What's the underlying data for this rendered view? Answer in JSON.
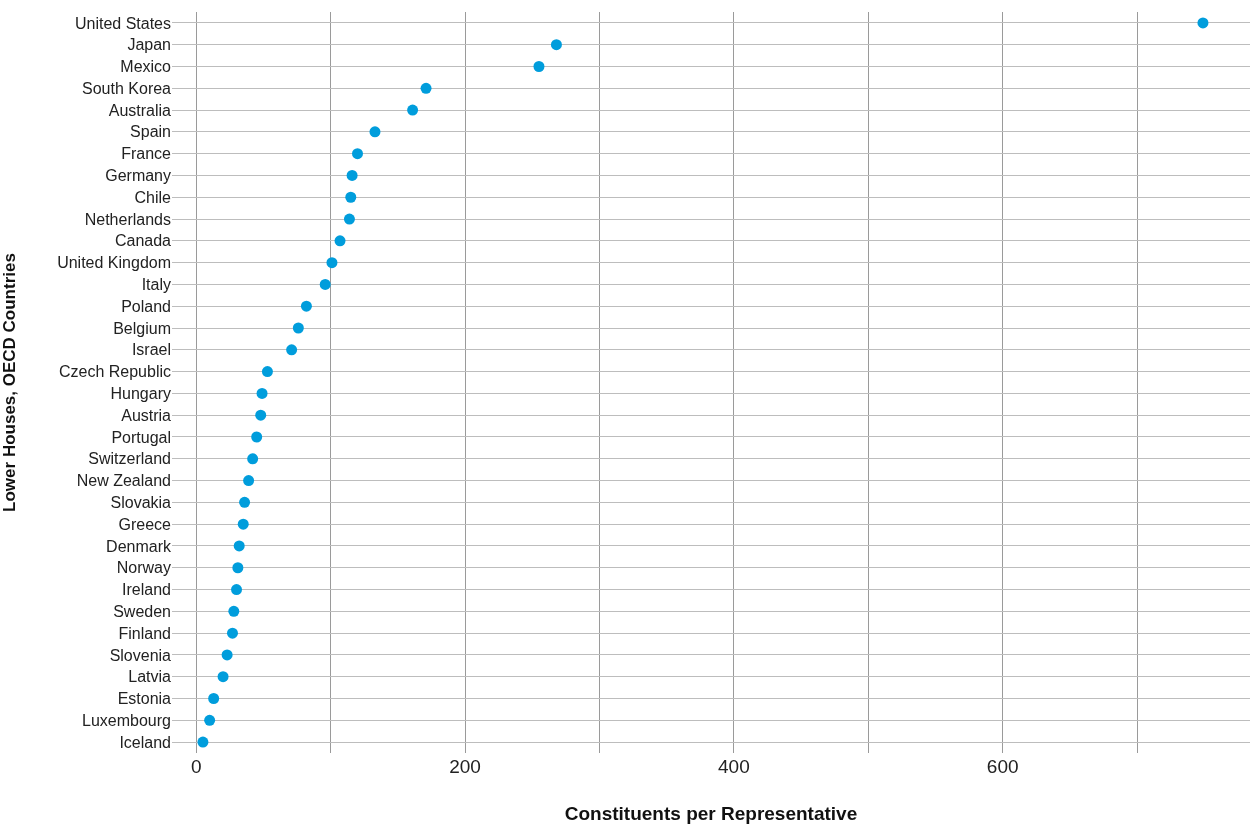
{
  "chart_data": {
    "type": "scatter",
    "orientation": "horizontal",
    "xlabel": "Constituents per Representative",
    "ylabel": "Lower Houses, OECD Countries",
    "categories": [
      "United States",
      "Japan",
      "Mexico",
      "South Korea",
      "Australia",
      "Spain",
      "France",
      "Germany",
      "Chile",
      "Netherlands",
      "Canada",
      "United Kingdom",
      "Italy",
      "Poland",
      "Belgium",
      "Israel",
      "Czech Republic",
      "Hungary",
      "Austria",
      "Portugal",
      "Switzerland",
      "New Zealand",
      "Slovakia",
      "Greece",
      "Denmark",
      "Norway",
      "Ireland",
      "Sweden",
      "Finland",
      "Slovenia",
      "Latvia",
      "Estonia",
      "Luxembourg",
      "Iceland"
    ],
    "values": [
      749,
      268,
      255,
      171,
      161,
      133,
      120,
      116,
      115,
      114,
      107,
      101,
      96,
      82,
      76,
      71,
      53,
      49,
      48,
      45,
      42,
      39,
      36,
      35,
      32,
      31,
      30,
      28,
      27,
      23,
      20,
      13,
      10,
      5
    ],
    "color": "#009ddc",
    "marker": "circle",
    "xlim": [
      -18,
      784
    ],
    "xticks": [
      0,
      {
        "value": 100,
        "label": null
      },
      200,
      {
        "value": 300,
        "label": null
      },
      400,
      {
        "value": 500,
        "label": null
      },
      600,
      {
        "value": 700,
        "label": null
      }
    ],
    "grid": true
  }
}
